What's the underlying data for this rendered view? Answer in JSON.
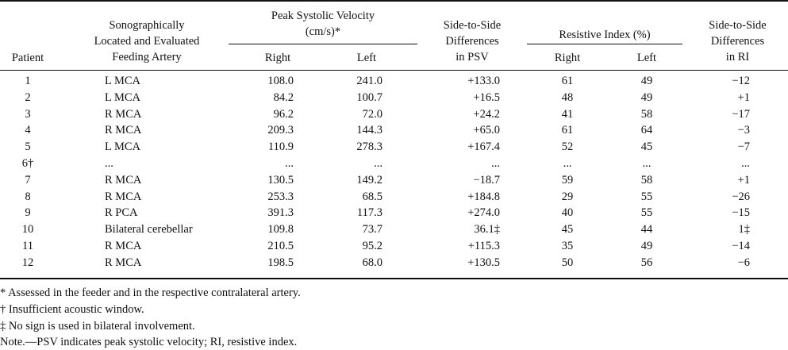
{
  "headers": {
    "patient": "Patient",
    "artery": [
      "Sonographically",
      "Located and Evaluated",
      "Feeding Artery"
    ],
    "psv": [
      "Peak Systolic Velocity",
      "(cm/s)*"
    ],
    "psv_right": "Right",
    "psv_left": "Left",
    "psv_diff": [
      "Side-to-Side",
      "Differences",
      "in PSV"
    ],
    "ri": "Resistive Index (%)",
    "ri_right": "Right",
    "ri_left": "Left",
    "ri_diff": [
      "Side-to-Side",
      "Differences",
      "in RI"
    ]
  },
  "rows": [
    {
      "patient": "1",
      "artery": "L MCA",
      "psv_right": "108.0",
      "psv_left": "241.0",
      "psv_diff": "+133.0",
      "ri_right": "61",
      "ri_left": "49",
      "ri_diff": "−12"
    },
    {
      "patient": "2",
      "artery": "L MCA",
      "psv_right": "84.2",
      "psv_left": "100.7",
      "psv_diff": "+16.5",
      "ri_right": "48",
      "ri_left": "49",
      "ri_diff": "+1"
    },
    {
      "patient": "3",
      "artery": "R MCA",
      "psv_right": "96.2",
      "psv_left": "72.0",
      "psv_diff": "+24.2",
      "ri_right": "41",
      "ri_left": "58",
      "ri_diff": "−17"
    },
    {
      "patient": "4",
      "artery": "R MCA",
      "psv_right": "209.3",
      "psv_left": "144.3",
      "psv_diff": "+65.0",
      "ri_right": "61",
      "ri_left": "64",
      "ri_diff": "−3"
    },
    {
      "patient": "5",
      "artery": "L MCA",
      "psv_right": "110.9",
      "psv_left": "278.3",
      "psv_diff": "+167.4",
      "ri_right": "52",
      "ri_left": "45",
      "ri_diff": "−7"
    },
    {
      "patient": "6†",
      "artery": "...",
      "psv_right": "...",
      "psv_left": "...",
      "psv_diff": "...",
      "ri_right": "...",
      "ri_left": "...",
      "ri_diff": "..."
    },
    {
      "patient": "7",
      "artery": "R MCA",
      "psv_right": "130.5",
      "psv_left": "149.2",
      "psv_diff": "−18.7",
      "ri_right": "59",
      "ri_left": "58",
      "ri_diff": "+1"
    },
    {
      "patient": "8",
      "artery": "R MCA",
      "psv_right": "253.3",
      "psv_left": "68.5",
      "psv_diff": "+184.8",
      "ri_right": "29",
      "ri_left": "55",
      "ri_diff": "−26"
    },
    {
      "patient": "9",
      "artery": "R PCA",
      "psv_right": "391.3",
      "psv_left": "117.3",
      "psv_diff": "+274.0",
      "ri_right": "40",
      "ri_left": "55",
      "ri_diff": "−15"
    },
    {
      "patient": "10",
      "artery": "Bilateral cerebellar",
      "psv_right": "109.8",
      "psv_left": "73.7",
      "psv_diff": "36.1‡",
      "ri_right": "45",
      "ri_left": "44",
      "ri_diff": "1‡"
    },
    {
      "patient": "11",
      "artery": "R MCA",
      "psv_right": "210.5",
      "psv_left": "95.2",
      "psv_diff": "+115.3",
      "ri_right": "35",
      "ri_left": "49",
      "ri_diff": "−14"
    },
    {
      "patient": "12",
      "artery": "R MCA",
      "psv_right": "198.5",
      "psv_left": "68.0",
      "psv_diff": "+130.5",
      "ri_right": "50",
      "ri_left": "56",
      "ri_diff": "−6"
    }
  ],
  "footnotes": [
    "* Assessed in the feeder and in the respective contralateral artery.",
    "† Insufficient acoustic window.",
    "‡ No sign is used in bilateral involvement.",
    "Note.—PSV indicates peak systolic velocity; RI, resistive index."
  ]
}
